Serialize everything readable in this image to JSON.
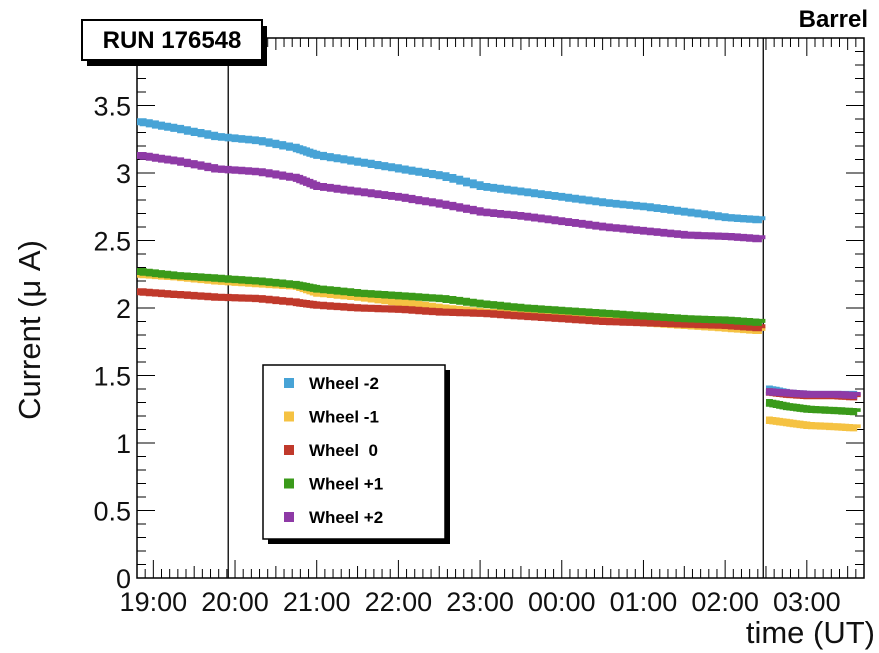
{
  "chart_data": {
    "type": "line",
    "run_label": "RUN 176548",
    "corner_label": "Barrel",
    "xlabel": "time (UT)",
    "ylabel": "Current (μ A)",
    "ylim": [
      0,
      4
    ],
    "xlim": [
      "18:48",
      "03:42"
    ],
    "x_ticks": [
      "19:00",
      "20:00",
      "21:00",
      "22:00",
      "23:00",
      "00:00",
      "01:00",
      "02:00",
      "03:00"
    ],
    "y_ticks": [
      "0",
      "0.5",
      "1",
      "1.5",
      "2",
      "2.5",
      "3",
      "3.5"
    ],
    "vertical_markers": [
      "19:55",
      "02:28"
    ],
    "legend_position": "lower-left",
    "grid": false,
    "series": [
      {
        "name": "Wheel -2",
        "color": "#47a3d6",
        "points": [
          [
            "18:48",
            3.38
          ],
          [
            "19:15",
            3.33
          ],
          [
            "19:45",
            3.27
          ],
          [
            "20:15",
            3.24
          ],
          [
            "20:45",
            3.18
          ],
          [
            "21:00",
            3.13
          ],
          [
            "21:30",
            3.08
          ],
          [
            "22:00",
            3.03
          ],
          [
            "22:30",
            2.98
          ],
          [
            "23:00",
            2.9
          ],
          [
            "23:30",
            2.86
          ],
          [
            "00:00",
            2.82
          ],
          [
            "00:30",
            2.78
          ],
          [
            "01:00",
            2.75
          ],
          [
            "01:30",
            2.71
          ],
          [
            "02:00",
            2.67
          ],
          [
            "02:27",
            2.65
          ],
          [
            "02:30",
            1.4
          ],
          [
            "02:45",
            1.37
          ],
          [
            "03:00",
            1.36
          ],
          [
            "03:20",
            1.36
          ],
          [
            "03:37",
            1.36
          ]
        ]
      },
      {
        "name": "Wheel -1",
        "color": "#f5c242",
        "points": [
          [
            "18:48",
            2.25
          ],
          [
            "19:15",
            2.23
          ],
          [
            "19:45",
            2.2
          ],
          [
            "20:15",
            2.18
          ],
          [
            "20:45",
            2.16
          ],
          [
            "21:00",
            2.11
          ],
          [
            "21:30",
            2.08
          ],
          [
            "22:00",
            2.04
          ],
          [
            "22:30",
            2.0
          ],
          [
            "23:00",
            1.97
          ],
          [
            "23:30",
            1.95
          ],
          [
            "00:00",
            1.93
          ],
          [
            "00:30",
            1.91
          ],
          [
            "01:00",
            1.89
          ],
          [
            "01:30",
            1.87
          ],
          [
            "02:00",
            1.85
          ],
          [
            "02:27",
            1.83
          ],
          [
            "02:30",
            1.17
          ],
          [
            "02:45",
            1.15
          ],
          [
            "03:00",
            1.13
          ],
          [
            "03:20",
            1.12
          ],
          [
            "03:37",
            1.11
          ]
        ]
      },
      {
        "name": "Wheel  0",
        "color": "#c0392b",
        "points": [
          [
            "18:48",
            2.12
          ],
          [
            "19:15",
            2.1
          ],
          [
            "19:45",
            2.08
          ],
          [
            "20:15",
            2.07
          ],
          [
            "20:45",
            2.04
          ],
          [
            "21:00",
            2.02
          ],
          [
            "21:30",
            2.0
          ],
          [
            "22:00",
            1.99
          ],
          [
            "22:30",
            1.97
          ],
          [
            "23:00",
            1.96
          ],
          [
            "23:30",
            1.94
          ],
          [
            "00:00",
            1.92
          ],
          [
            "00:30",
            1.9
          ],
          [
            "01:00",
            1.89
          ],
          [
            "01:30",
            1.88
          ],
          [
            "02:00",
            1.87
          ],
          [
            "02:27",
            1.85
          ],
          [
            "02:30",
            1.38
          ],
          [
            "02:45",
            1.36
          ],
          [
            "03:00",
            1.35
          ],
          [
            "03:20",
            1.35
          ],
          [
            "03:37",
            1.34
          ]
        ]
      },
      {
        "name": "Wheel +1",
        "color": "#3a9a1a",
        "points": [
          [
            "18:48",
            2.27
          ],
          [
            "19:15",
            2.24
          ],
          [
            "19:45",
            2.22
          ],
          [
            "20:15",
            2.2
          ],
          [
            "20:45",
            2.17
          ],
          [
            "21:00",
            2.14
          ],
          [
            "21:30",
            2.11
          ],
          [
            "22:00",
            2.09
          ],
          [
            "22:30",
            2.07
          ],
          [
            "23:00",
            2.03
          ],
          [
            "23:30",
            2.0
          ],
          [
            "00:00",
            1.98
          ],
          [
            "00:30",
            1.96
          ],
          [
            "01:00",
            1.94
          ],
          [
            "01:30",
            1.92
          ],
          [
            "02:00",
            1.91
          ],
          [
            "02:27",
            1.89
          ],
          [
            "02:30",
            1.3
          ],
          [
            "02:45",
            1.27
          ],
          [
            "03:00",
            1.25
          ],
          [
            "03:20",
            1.24
          ],
          [
            "03:37",
            1.23
          ]
        ]
      },
      {
        "name": "Wheel +2",
        "color": "#8e3aa6",
        "points": [
          [
            "18:48",
            3.13
          ],
          [
            "19:15",
            3.09
          ],
          [
            "19:45",
            3.03
          ],
          [
            "20:15",
            3.01
          ],
          [
            "20:45",
            2.96
          ],
          [
            "21:00",
            2.9
          ],
          [
            "21:30",
            2.86
          ],
          [
            "22:00",
            2.82
          ],
          [
            "22:30",
            2.77
          ],
          [
            "23:00",
            2.71
          ],
          [
            "23:30",
            2.68
          ],
          [
            "00:00",
            2.64
          ],
          [
            "00:30",
            2.6
          ],
          [
            "01:00",
            2.57
          ],
          [
            "01:30",
            2.54
          ],
          [
            "02:00",
            2.53
          ],
          [
            "02:27",
            2.51
          ],
          [
            "02:30",
            1.38
          ],
          [
            "02:45",
            1.37
          ],
          [
            "03:00",
            1.36
          ],
          [
            "03:20",
            1.36
          ],
          [
            "03:37",
            1.35
          ]
        ]
      }
    ]
  }
}
